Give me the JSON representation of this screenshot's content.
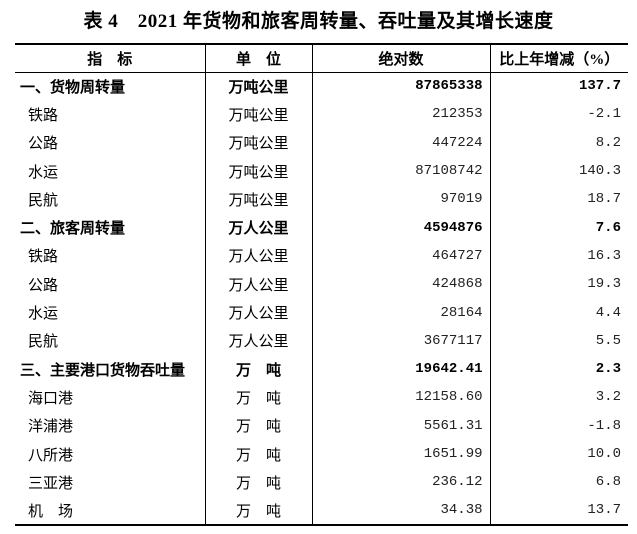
{
  "title": "表 4　2021 年货物和旅客周转量、吞吐量及其增长速度",
  "headers": [
    "指　标",
    "单　位",
    "绝对数",
    "比上年增减（%）"
  ],
  "rows": [
    {
      "name": "一、货物周转量",
      "unit": "万吨公里",
      "value": "87865338",
      "change": "137.7",
      "bold": true
    },
    {
      "name": "铁路",
      "unit": "万吨公里",
      "value": "212353",
      "change": "-2.1"
    },
    {
      "name": "公路",
      "unit": "万吨公里",
      "value": "447224",
      "change": "8.2"
    },
    {
      "name": "水运",
      "unit": "万吨公里",
      "value": "87108742",
      "change": "140.3"
    },
    {
      "name": "民航",
      "unit": "万吨公里",
      "value": "97019",
      "change": "18.7"
    },
    {
      "name": "二、旅客周转量",
      "unit": "万人公里",
      "value": "4594876",
      "change": "7.6",
      "bold": true
    },
    {
      "name": "铁路",
      "unit": "万人公里",
      "value": "464727",
      "change": "16.3"
    },
    {
      "name": "公路",
      "unit": "万人公里",
      "value": "424868",
      "change": "19.3"
    },
    {
      "name": "水运",
      "unit": "万人公里",
      "value": "28164",
      "change": "4.4"
    },
    {
      "name": "民航",
      "unit": "万人公里",
      "value": "3677117",
      "change": "5.5"
    },
    {
      "name": "三、主要港口货物吞吐量",
      "unit": "万　吨",
      "value": "19642.41",
      "change": "2.3",
      "bold": true
    },
    {
      "name": "海口港",
      "unit": "万　吨",
      "value": "12158.60",
      "change": "3.2"
    },
    {
      "name": "洋浦港",
      "unit": "万　吨",
      "value": "5561.31",
      "change": "-1.8"
    },
    {
      "name": "八所港",
      "unit": "万　吨",
      "value": "1651.99",
      "change": "10.0"
    },
    {
      "name": "三亚港",
      "unit": "万　吨",
      "value": "236.12",
      "change": "6.8"
    },
    {
      "name": "机　场",
      "unit": "万　吨",
      "value": "34.38",
      "change": "13.7"
    }
  ]
}
